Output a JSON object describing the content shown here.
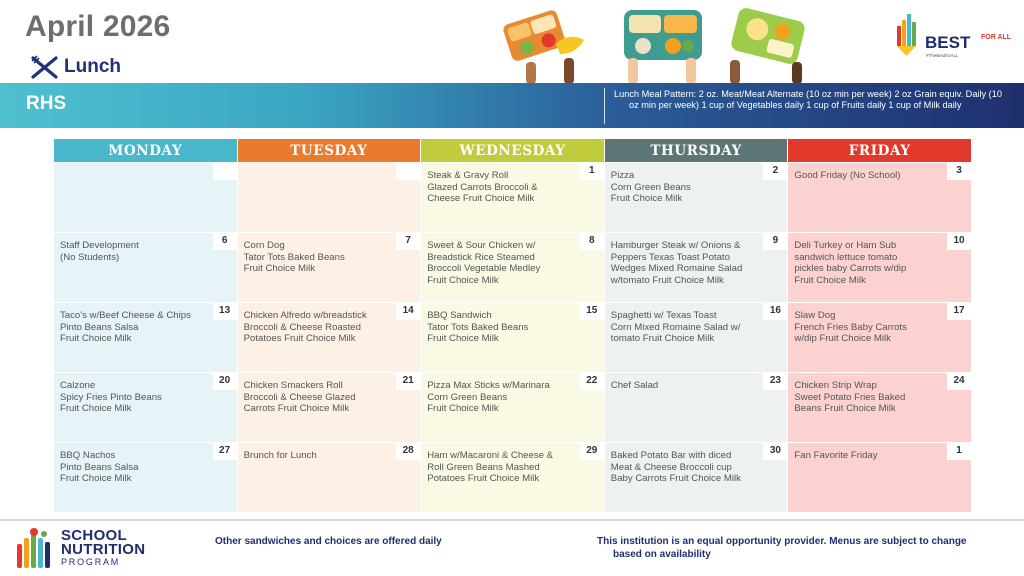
{
  "header": {
    "title": "April 2026",
    "meal_label": "Lunch",
    "school": "RHS",
    "meal_pattern": "Lunch Meal Pattern: 2 oz. Meat/Meat Alternate (10 oz min per week) 2 oz Grain equiv. Daily (10 oz min per week) 1 cup of Vegetables daily 1 cup of Fruits daily 1 cup of Milk daily"
  },
  "logo": {
    "text": "BEST",
    "for_all": "FOR ALL",
    "tag": "#TheBestforALL"
  },
  "days": [
    {
      "label": "MONDAY",
      "color": "#4ab8cb"
    },
    {
      "label": "TUESDAY",
      "color": "#e97a2e"
    },
    {
      "label": "WEDNESDAY",
      "color": "#c1cc3c"
    },
    {
      "label": "THURSDAY",
      "color": "#5c7575"
    },
    {
      "label": "FRIDAY",
      "color": "#e2392d"
    }
  ],
  "weeks": [
    [
      {
        "num": "",
        "text": ""
      },
      {
        "num": "",
        "text": ""
      },
      {
        "num": "1",
        "text": "Steak & Gravy Roll\nGlazed Carrots Broccoli &\nCheese Fruit Choice Milk"
      },
      {
        "num": "2",
        "text": "Pizza\nCorn Green Beans\nFruit Choice Milk"
      },
      {
        "num": "3",
        "text": "Good Friday (No School)"
      }
    ],
    [
      {
        "num": "6",
        "text": "Staff Development\n(No Students)"
      },
      {
        "num": "7",
        "text": "Corn Dog\nTator Tots Baked Beans\nFruit Choice Milk"
      },
      {
        "num": "8",
        "text": "Sweet & Sour Chicken w/\nBreadstick Rice  Steamed\nBroccoli Vegetable Medley\nFruit Choice Milk"
      },
      {
        "num": "9",
        "text": "Hamburger Steak w/ Onions &\nPeppers Texas Toast  Potato\nWedges Mixed Romaine Salad\nw/tomato  Fruit Choice Milk"
      },
      {
        "num": "10",
        "text": "Deli Turkey or Ham Sub\nsandwich lettuce tomato\npickles baby Carrots w/dip\nFruit Choice Milk"
      }
    ],
    [
      {
        "num": "13",
        "text": "Taco's w/Beef Cheese & Chips\nPinto Beans Salsa\nFruit Choice Milk"
      },
      {
        "num": "14",
        "text": "Chicken Alfredo w/breadstick\nBroccoli & Cheese Roasted\nPotatoes Fruit Choice Milk"
      },
      {
        "num": "15",
        "text": "BBQ Sandwich\nTator Tots Baked Beans\n Fruit Choice Milk"
      },
      {
        "num": "16",
        "text": "Spaghetti w/ Texas Toast\n Corn Mixed Romaine Salad w/\ntomato Fruit Choice Milk"
      },
      {
        "num": "17",
        "text": "Slaw Dog\nFrench Fries Baby Carrots\nw/dip Fruit Choice Milk"
      }
    ],
    [
      {
        "num": "20",
        "text": "Calzone\nSpicy Fries Pinto Beans\nFruit Choice Milk"
      },
      {
        "num": "21",
        "text": "Chicken Smackers Roll\nBroccoli & Cheese Glazed\nCarrots Fruit Choice Milk"
      },
      {
        "num": "22",
        "text": "Pizza Max Sticks w/Marinara\nCorn Green Beans\nFruit Choice Milk"
      },
      {
        "num": "23",
        "text": "Chef Salad"
      },
      {
        "num": "24",
        "text": "Chicken Strip Wrap\nSweet Potato Fries  Baked\nBeans Fruit Choice Milk"
      }
    ],
    [
      {
        "num": "27",
        "text": "BBQ Nachos\nPinto Beans Salsa\nFruit Choice Milk"
      },
      {
        "num": "28",
        "text": "Brunch for Lunch"
      },
      {
        "num": "29",
        "text": "Ham w/Macaroni & Cheese &\nRoll  Green Beans Mashed\nPotatoes Fruit Choice Milk"
      },
      {
        "num": "30",
        "text": "Baked Potato Bar with diced\nMeat & Cheese Broccoli cup\nBaby Carrots Fruit Choice Milk"
      },
      {
        "num": "1",
        "text": "Fan Favorite Friday"
      }
    ]
  ],
  "footer": {
    "note_left": "Other sandwiches and choices are offered daily",
    "note_right": "This institution is an equal opportunity provider. Menus are subject to change based on availability",
    "program_line1": "SCHOOL",
    "program_line2": "NUTRITION",
    "program_line3": "PROGRAM"
  }
}
